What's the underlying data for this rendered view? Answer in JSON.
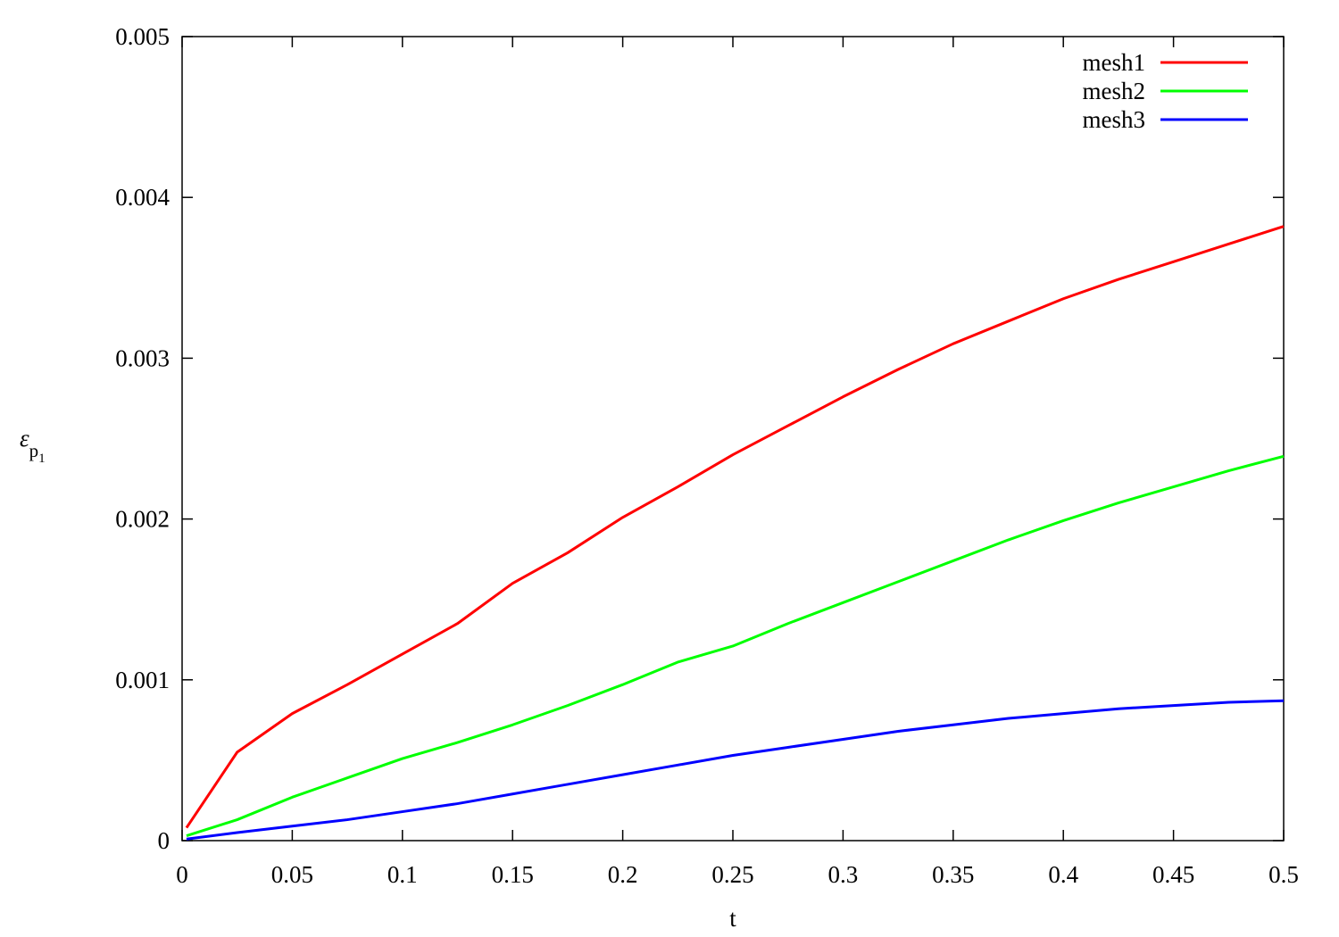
{
  "chart_data": {
    "type": "line",
    "xlabel": "t",
    "ylabel": {
      "base": "ε",
      "sub": "p",
      "subsub": "1"
    },
    "x": [
      0.002,
      0.025,
      0.05,
      0.075,
      0.1,
      0.125,
      0.15,
      0.175,
      0.2,
      0.225,
      0.25,
      0.275,
      0.3,
      0.325,
      0.35,
      0.375,
      0.4,
      0.425,
      0.45,
      0.475,
      0.5
    ],
    "series": [
      {
        "name": "mesh1",
        "color": "#ff0000",
        "values": [
          8e-05,
          0.00055,
          0.00079,
          0.00097,
          0.00116,
          0.00135,
          0.0016,
          0.00179,
          0.00201,
          0.0022,
          0.0024,
          0.00258,
          0.00276,
          0.00293,
          0.00309,
          0.00323,
          0.00337,
          0.00349,
          0.0036,
          0.00371,
          0.00382
        ]
      },
      {
        "name": "mesh2",
        "color": "#00ff00",
        "values": [
          3e-05,
          0.00013,
          0.00027,
          0.00039,
          0.00051,
          0.00061,
          0.00072,
          0.00084,
          0.00097,
          0.00111,
          0.00121,
          0.00135,
          0.00148,
          0.00161,
          0.00174,
          0.00187,
          0.00199,
          0.0021,
          0.0022,
          0.0023,
          0.00239
        ]
      },
      {
        "name": "mesh3",
        "color": "#0000ff",
        "values": [
          1e-05,
          5e-05,
          9e-05,
          0.00013,
          0.00018,
          0.00023,
          0.00029,
          0.00035,
          0.00041,
          0.00047,
          0.00053,
          0.00058,
          0.00063,
          0.00068,
          0.00072,
          0.00076,
          0.00079,
          0.00082,
          0.00084,
          0.00086,
          0.00087
        ]
      }
    ],
    "xlim": [
      0,
      0.5
    ],
    "xticks": [
      0,
      0.05,
      0.1,
      0.15,
      0.2,
      0.25,
      0.3,
      0.35,
      0.4,
      0.45,
      0.5
    ],
    "ylim": [
      0,
      0.005
    ],
    "yticks": [
      0,
      0.001,
      0.002,
      0.003,
      0.004,
      0.005
    ],
    "grid": false,
    "legend": "top-right"
  }
}
